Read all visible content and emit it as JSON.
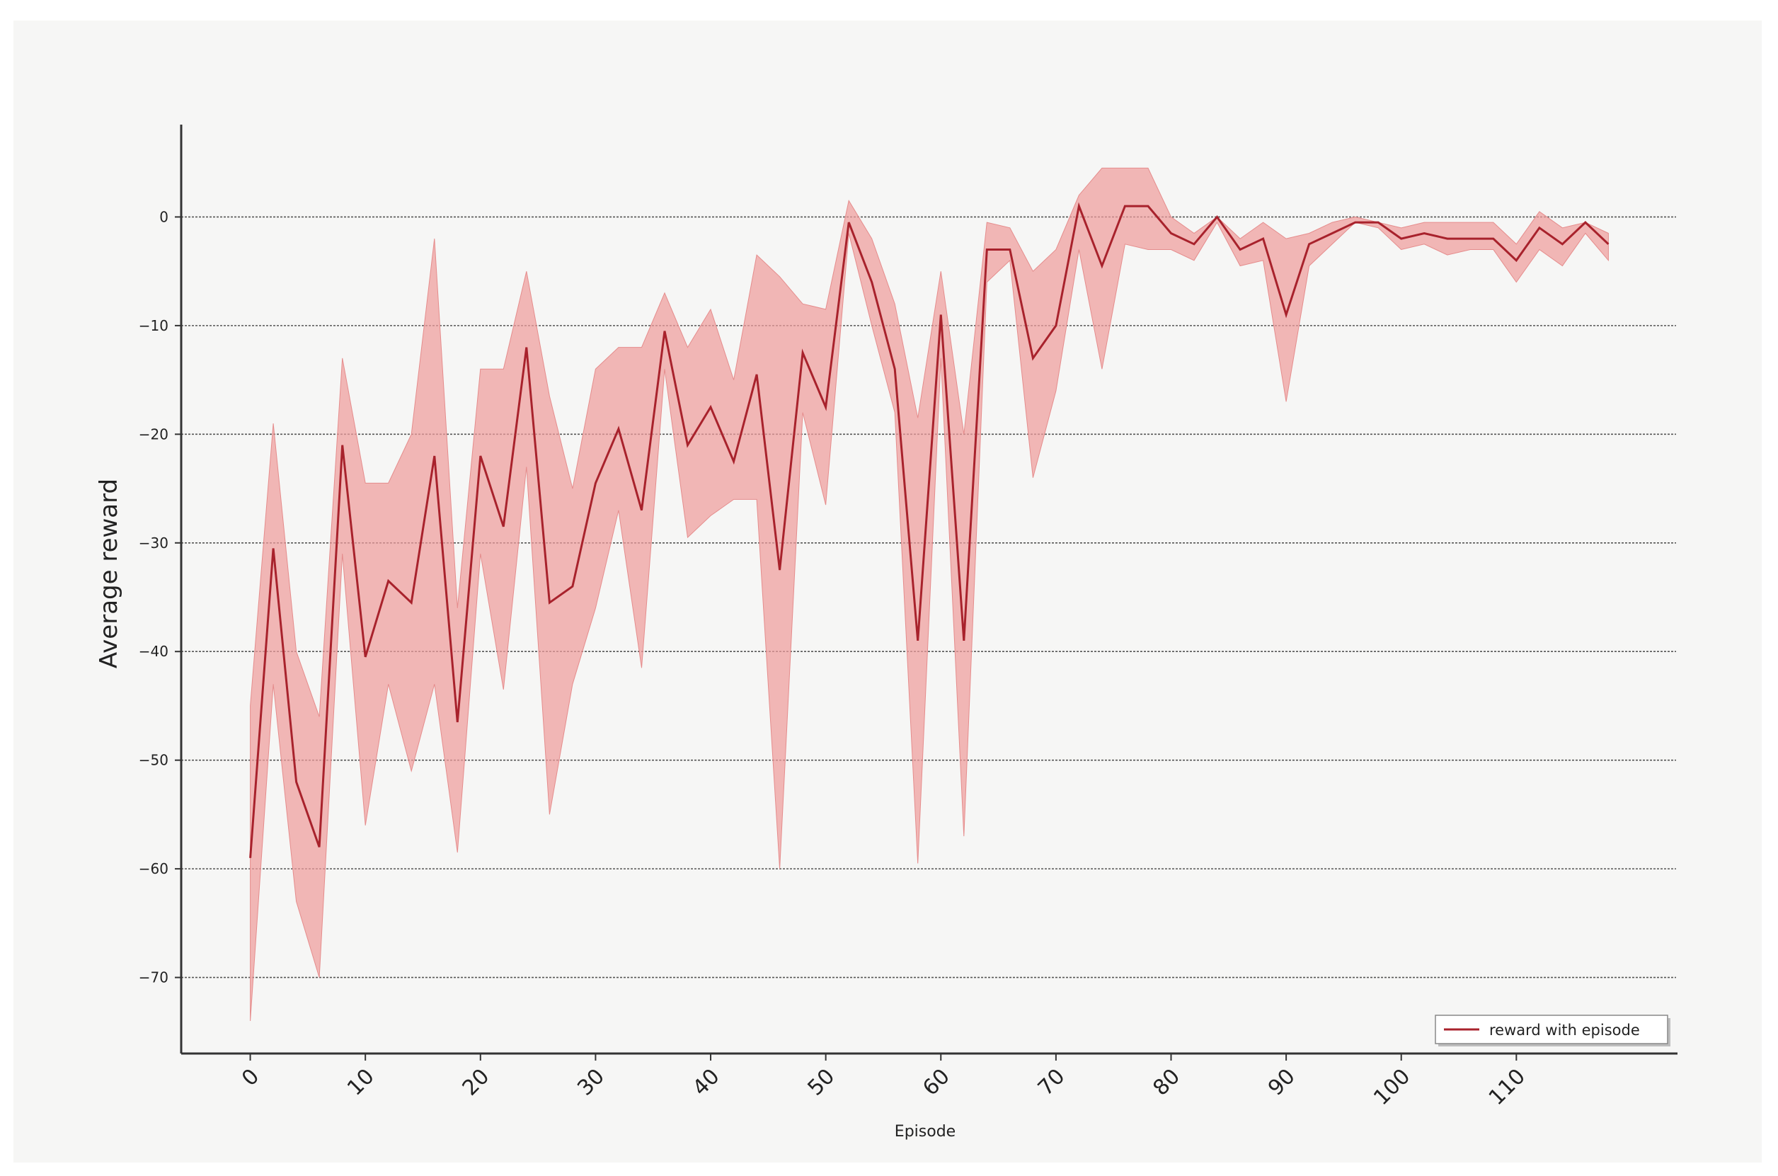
{
  "chart_data": {
    "type": "line",
    "title": "",
    "xlabel": "Episode",
    "ylabel": "Average reward",
    "xlim": [
      -6,
      124
    ],
    "ylim": [
      -77,
      8.5
    ],
    "x_ticks": [
      0,
      10,
      20,
      30,
      40,
      50,
      60,
      70,
      80,
      90,
      100,
      110
    ],
    "y_ticks": [
      0,
      -10,
      -20,
      -30,
      -40,
      -50,
      -60,
      -70
    ],
    "grid": "horizontal dashed",
    "legend": {
      "position": "bottom-right",
      "entries": [
        "reward with episode"
      ]
    },
    "colors": {
      "line": "#a8222c",
      "band": "#ef9d9d",
      "grid": "#555555",
      "axis": "#333333"
    },
    "series": [
      {
        "name": "reward with episode",
        "x": [
          0,
          2,
          4,
          6,
          8,
          10,
          12,
          14,
          16,
          18,
          20,
          22,
          24,
          26,
          28,
          30,
          32,
          34,
          36,
          38,
          40,
          42,
          44,
          46,
          48,
          50,
          52,
          54,
          56,
          58,
          60,
          62,
          64,
          66,
          68,
          70,
          72,
          74,
          76,
          78,
          80,
          82,
          84,
          86,
          88,
          90,
          92,
          94,
          96,
          98,
          100,
          102,
          104,
          106,
          108,
          110,
          112,
          114,
          116,
          118
        ],
        "y": [
          -59,
          -30.5,
          -52,
          -58,
          -21,
          -40.5,
          -33.5,
          -35.5,
          -22,
          -46.5,
          -22,
          -28.5,
          -12,
          -35.5,
          -34,
          -24.5,
          -19.5,
          -27,
          -10.5,
          -21,
          -17.5,
          -22.5,
          -14.5,
          -32.5,
          -12.5,
          -17.5,
          -0.5,
          -6,
          -14,
          -39,
          -9,
          -39,
          -3,
          -3,
          -13,
          -10,
          1,
          -4.5,
          1,
          1,
          -1.5,
          -2.5,
          0,
          -3,
          -2,
          -9,
          -2.5,
          -1.5,
          -0.5,
          -0.5,
          -2,
          -1.5,
          -2,
          -2,
          -2,
          -4,
          -1,
          -2.5,
          -0.5,
          -2.5
        ],
        "lower": [
          -74,
          -43,
          -63,
          -70,
          -31,
          -56,
          -43,
          -51,
          -43,
          -58.5,
          -31,
          -43.5,
          -23,
          -55,
          -43,
          -36,
          -27,
          -41.5,
          -14,
          -29.5,
          -27.5,
          -26,
          -26,
          -60,
          -18,
          -26.5,
          -1.5,
          -10,
          -18,
          -59.5,
          -13,
          -57,
          -6,
          -4,
          -24,
          -16,
          -3,
          -14,
          -2.5,
          -3,
          -3,
          -4,
          -0.5,
          -4.5,
          -4,
          -17,
          -4.5,
          -2.5,
          -0.5,
          -1,
          -3,
          -2.5,
          -3.5,
          -3,
          -3,
          -6,
          -3,
          -4.5,
          -1.5,
          -4
        ],
        "upper": [
          -45,
          -19,
          -40,
          -46,
          -13,
          -24.5,
          -24.5,
          -20,
          -2,
          -36,
          -14,
          -14,
          -5,
          -16.5,
          -25,
          -14,
          -12,
          -12,
          -7,
          -12,
          -8.5,
          -15,
          -3.5,
          -5.5,
          -8,
          -8.5,
          1.5,
          -2,
          -8,
          -18.5,
          -5,
          -20,
          -0.5,
          -1,
          -5,
          -3,
          2,
          4.5,
          4.5,
          4.5,
          0,
          -1.5,
          0,
          -2,
          -0.5,
          -2,
          -1.5,
          -0.5,
          0,
          -0.5,
          -1,
          -0.5,
          -0.5,
          -0.5,
          -0.5,
          -2.5,
          0.5,
          -1,
          -0.5,
          -1.5
        ]
      }
    ]
  }
}
